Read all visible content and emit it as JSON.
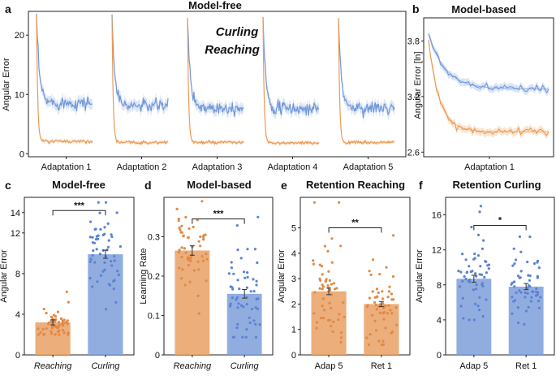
{
  "colors": {
    "reaching": "#e9a064",
    "curling": "#7e9fdb",
    "reaching_line": "#ea9a55",
    "curling_line": "#7097db",
    "curling_legend": "#8aaee6",
    "reaching_legend": "#eca265"
  },
  "chart_data": [
    {
      "panel": "a",
      "type": "line",
      "title": "Model-free",
      "ylabel": "Angular Error",
      "xlabel": "",
      "ylim": [
        -0.5,
        24
      ],
      "yticks": [
        0,
        10,
        20
      ],
      "categories": [
        "Adaptation 1",
        "Adaptation 2",
        "Adaptation 3",
        "Adaptation 4",
        "Adaptation 5"
      ],
      "legend": [
        "Curling",
        "Reaching"
      ],
      "series": [
        {
          "name": "Curling",
          "start": 23,
          "plateau": [
            8.6,
            8.1,
            7.8,
            7.6,
            7.7
          ]
        },
        {
          "name": "Reaching",
          "start": 23,
          "plateau": [
            2.1,
            1.9,
            1.9,
            1.8,
            1.9
          ]
        }
      ]
    },
    {
      "panel": "b",
      "type": "line",
      "title": "Model-based",
      "ylabel": "Angular Error [ln]",
      "xlabel": "Adaptation 1",
      "ylim": [
        2.55,
        4.05
      ],
      "yticks": [
        2.6,
        3.2,
        3.8
      ],
      "series": [
        {
          "name": "Curling",
          "start": 3.88,
          "plateau": 3.28
        },
        {
          "name": "Reaching",
          "start": 3.8,
          "plateau": 2.82
        }
      ]
    },
    {
      "panel": "c",
      "type": "bar",
      "title": "Model-free",
      "ylabel": "Angular Error",
      "ylim": [
        0,
        15.5
      ],
      "yticks": [
        0,
        4,
        8,
        12,
        14
      ],
      "categories": [
        "Reaching",
        "Curling"
      ],
      "values": [
        3.2,
        9.9
      ],
      "errors": [
        0.25,
        0.4
      ],
      "point_range": [
        [
          2.0,
          6.2
        ],
        [
          4.5,
          15.0
        ]
      ],
      "significance": "***",
      "italic_labels": true
    },
    {
      "panel": "d",
      "type": "bar",
      "title": "Model-based",
      "ylabel": "Learning Rate",
      "ylim": [
        0,
        0.4
      ],
      "yticks": [
        0,
        0.1,
        0.2,
        0.3
      ],
      "categories": [
        "Reaching",
        "Curling"
      ],
      "values": [
        0.265,
        0.155
      ],
      "errors": [
        0.012,
        0.011
      ],
      "point_range": [
        [
          0.105,
          0.39
        ],
        [
          0.045,
          0.35
        ]
      ],
      "significance": "***",
      "italic_labels": true
    },
    {
      "panel": "e",
      "type": "bar",
      "title": "Retention Reaching",
      "ylabel": "Angular Error",
      "ylim": [
        0,
        6.2
      ],
      "yticks": [
        0,
        1,
        2,
        3,
        4,
        5
      ],
      "categories": [
        "Adap 5",
        "Ret 1"
      ],
      "values": [
        2.5,
        2.0
      ],
      "errors": [
        0.13,
        0.1
      ],
      "point_range": [
        [
          0.5,
          6.0
        ],
        [
          0.4,
          4.7
        ]
      ],
      "significance": "**",
      "italic_labels": false
    },
    {
      "panel": "f",
      "type": "bar",
      "title": "Retention Curling",
      "ylabel": "Angular Error",
      "ylim": [
        0,
        18
      ],
      "yticks": [
        0,
        4,
        8,
        12,
        16
      ],
      "categories": [
        "Adap 5",
        "Ret 1"
      ],
      "values": [
        8.7,
        7.8
      ],
      "errors": [
        0.4,
        0.35
      ],
      "point_range": [
        [
          4.0,
          17.0
        ],
        [
          3.5,
          13.5
        ]
      ],
      "significance": "*",
      "italic_labels": false
    }
  ]
}
